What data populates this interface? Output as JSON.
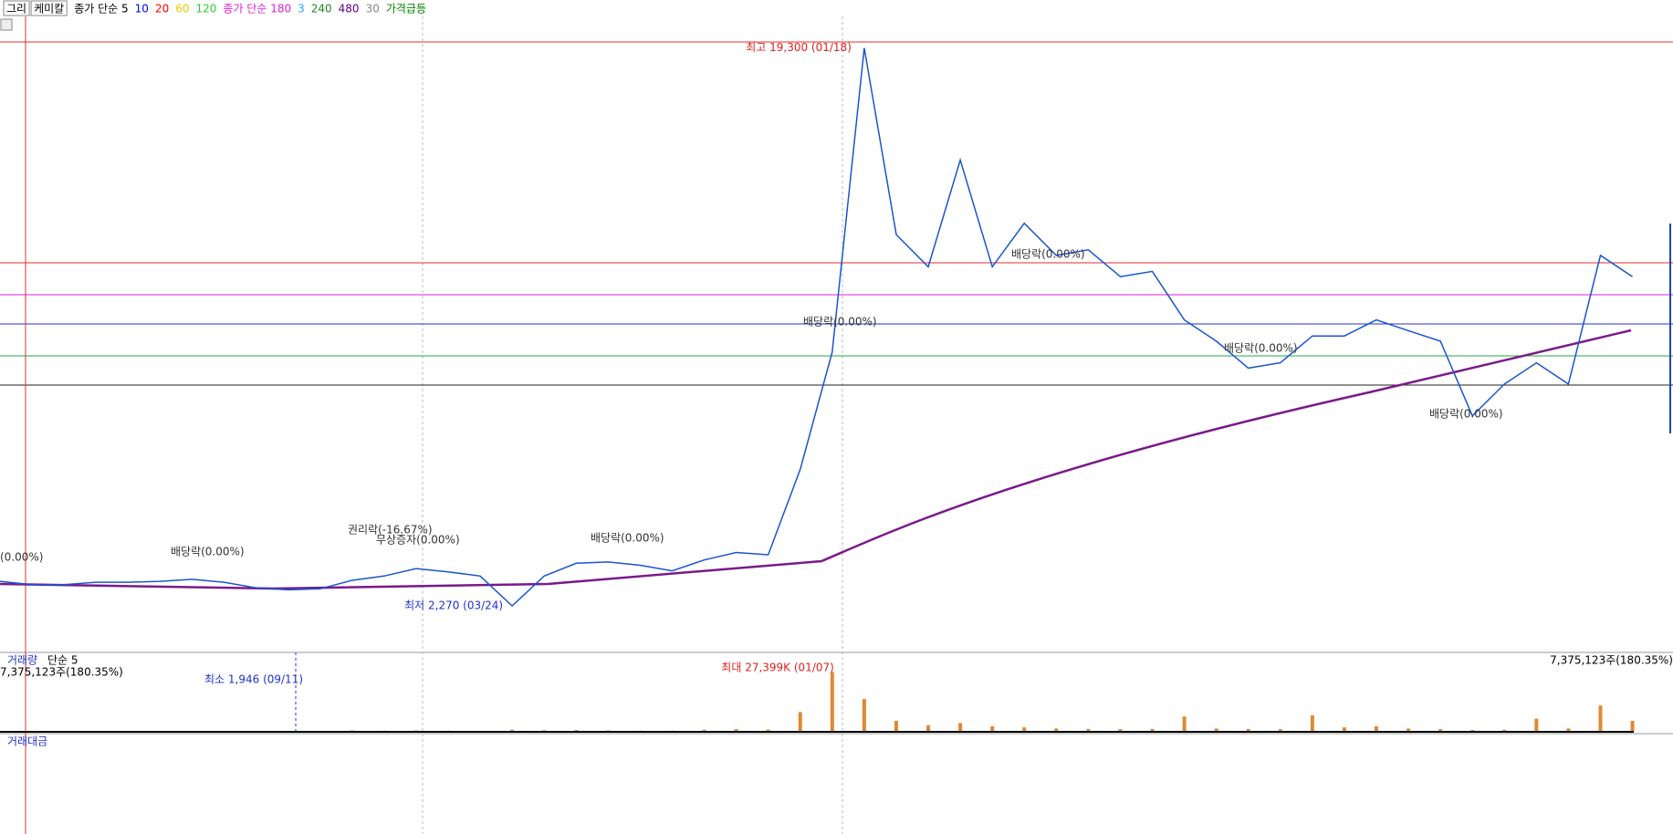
{
  "toolbar": {
    "tabs": [
      "그리",
      "케미칼"
    ],
    "ma_items": [
      {
        "text": "종가 단순 5",
        "color": "#000000"
      },
      {
        "text": "10",
        "color": "#0000ff"
      },
      {
        "text": "20",
        "color": "#ff0000"
      },
      {
        "text": "60",
        "color": "#e0d000"
      },
      {
        "text": "120",
        "color": "#33cc33"
      },
      {
        "text": "종가 단순 180",
        "color": "#dd22dd"
      },
      {
        "text": "3",
        "color": "#22aaff"
      },
      {
        "text": "240",
        "color": "#228822"
      },
      {
        "text": "480",
        "color": "#660088"
      },
      {
        "text": "30",
        "color": "#888888"
      },
      {
        "text": "가격급등",
        "color": "#008800"
      }
    ]
  },
  "price_panel": {
    "high": {
      "label": "최고 19,300 (01/18)",
      "value": 19300
    },
    "low": {
      "label": "최저 2,270 (03/24)",
      "value": 2270
    },
    "events": [
      "(0.00%)",
      "배당락(0.00%)",
      "권리락(-16.67%)",
      "무상증자(0.00%)",
      "배당락(0.00%)",
      "배당락(0.00%)",
      "배당락(0.00%)",
      "배당락(0.00%)",
      "배당락(0.00%)"
    ],
    "values": [
      3020,
      2920,
      2920,
      2990,
      2990,
      3020,
      3080,
      2990,
      2820,
      2760,
      2790,
      3050,
      3180,
      3410,
      3310,
      3180,
      2270,
      3180,
      3570,
      3610,
      3510,
      3340,
      3670,
      3900,
      3830,
      6440,
      10020,
      19300,
      13600,
      12620,
      15880,
      12620,
      13950,
      12970,
      13140,
      12320,
      12480,
      11000,
      10350,
      9530,
      9690,
      10510,
      10510,
      11000,
      10670,
      10350,
      8070,
      9040,
      9690,
      9040,
      12970,
      12320
    ]
  },
  "volume_panel": {
    "title": "거래량",
    "ma": "단순 5",
    "current_left": "7,375,123주(180.35%)",
    "current_right": "7,375,123주(180.35%)",
    "min": {
      "label": "최소 1,946 (09/11)"
    },
    "max": {
      "label": "최대 27,399K (01/07)",
      "value": 27399
    },
    "values": [
      400,
      350,
      300,
      300,
      350,
      300,
      300,
      300,
      250,
      250,
      250,
      600,
      500,
      600,
      500,
      400,
      900,
      700,
      800,
      600,
      500,
      500,
      900,
      1200,
      1000,
      9000,
      27399,
      15000,
      5000,
      3000,
      4000,
      2500,
      2000,
      1500,
      1300,
      1200,
      1300,
      7000,
      1500,
      1300,
      1200,
      7500,
      2000,
      2500,
      1500,
      1200,
      800,
      900,
      6000,
      1500,
      12000,
      5000
    ]
  },
  "amount_panel": {
    "title": "거래대금"
  }
}
